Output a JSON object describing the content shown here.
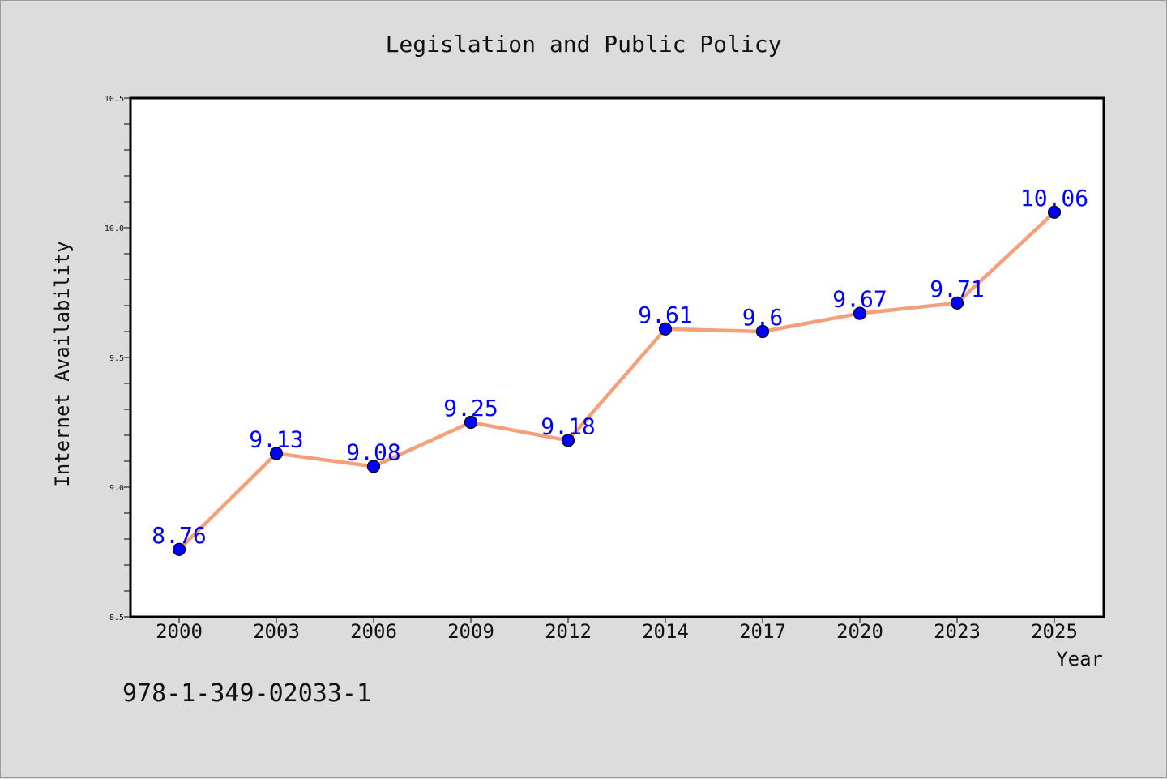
{
  "chart_data": {
    "type": "line",
    "title": "Legislation and Public Policy",
    "xlabel": "Year",
    "ylabel": "Internet Availability",
    "categories": [
      "2000",
      "2003",
      "2006",
      "2009",
      "2012",
      "2014",
      "2017",
      "2020",
      "2023",
      "2025"
    ],
    "series": [
      {
        "values": [
          8.76,
          9.13,
          9.08,
          9.25,
          9.18,
          9.61,
          9.6,
          9.67,
          9.71,
          10.06
        ]
      }
    ],
    "data_labels": [
      "8.76",
      "9.13",
      "9.08",
      "9.25",
      "9.18",
      "9.61",
      "9.6",
      "9.67",
      "9.71",
      "10.06"
    ],
    "ylim": [
      8.5,
      10.5
    ],
    "yticks": [
      "8.5",
      "9.0",
      "9.5",
      "10.0",
      "10.5"
    ],
    "ytick_values": [
      8.5,
      9.0,
      9.5,
      10.0,
      10.5
    ],
    "yminor_step": 0.1,
    "grid": false,
    "line_color": "#f4a07a",
    "marker_color": "#0000ff",
    "label_color": "#0000ff"
  },
  "footer_text": "978-1-349-02033-1"
}
